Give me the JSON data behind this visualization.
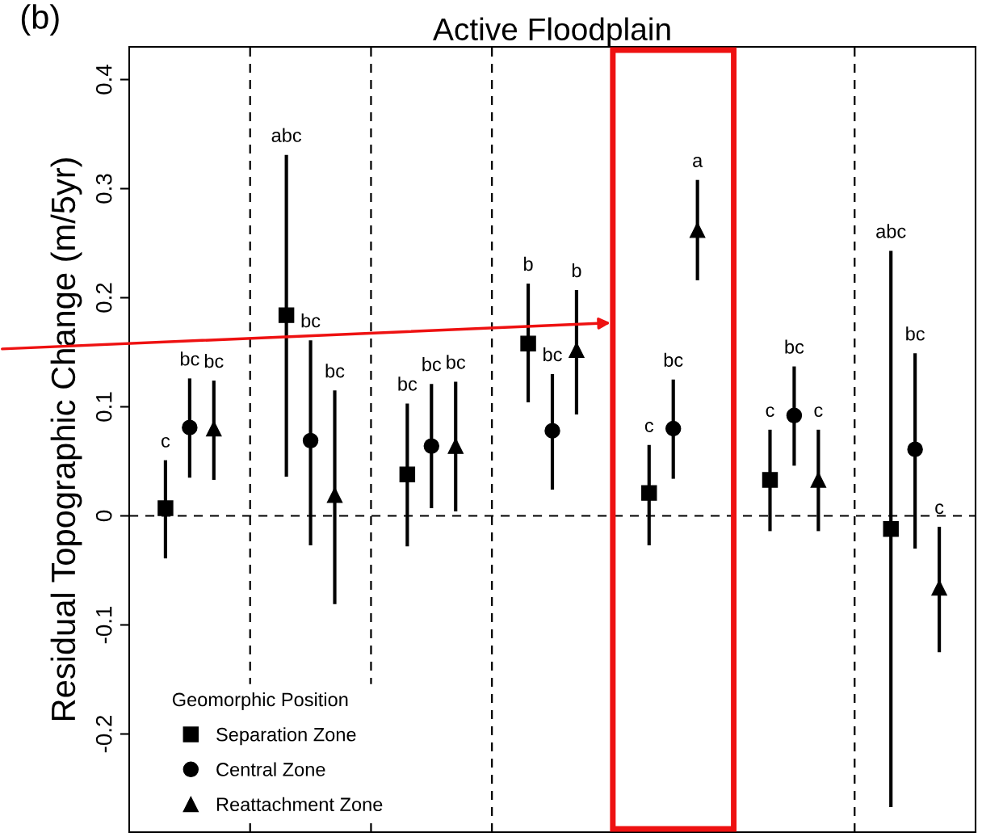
{
  "chart_data": {
    "type": "scatter",
    "title": "Active Floodplain",
    "ylabel": "Residual Topographic Change (m/5yr)",
    "legend_title": "Geomorphic Position",
    "annotations": [
      "(b)",
      {
        "text": "c",
        "y": 0.051
      },
      {
        "text": "bc",
        "y": 0.126
      },
      {
        "text": "bc",
        "y": 0.124
      },
      {
        "text": "abc",
        "y": 0.331
      },
      {
        "text": "bc",
        "y": 0.161
      },
      {
        "text": "bc",
        "y": 0.115
      },
      {
        "text": "bc",
        "y": 0.103
      },
      {
        "text": "bc",
        "y": 0.121
      },
      {
        "text": "bc",
        "y": 0.123
      },
      {
        "text": "b",
        "y": 0.213
      },
      {
        "text": "bc",
        "y": 0.13
      },
      {
        "text": "b",
        "y": 0.207
      },
      {
        "text": "c",
        "y": 0.065
      },
      {
        "text": "bc",
        "y": 0.125
      },
      {
        "text": "a",
        "y": 0.308
      },
      {
        "text": "c",
        "y": 0.079
      },
      {
        "text": "bc",
        "y": 0.137
      },
      {
        "text": "c",
        "y": 0.079
      },
      {
        "text": "abc",
        "y": 0.243
      },
      {
        "text": "bc",
        "y": 0.149
      },
      {
        "text": "c",
        "y": -0.01
      }
    ],
    "categories": [
      null,
      null,
      null,
      null,
      null,
      null,
      null
    ],
    "series": [
      {
        "name": "Separation Zone",
        "color": "#000000",
        "marker": "square",
        "values": [
          0.007,
          0.184,
          0.038,
          0.158,
          0.021,
          0.033,
          -0.012
        ],
        "errors": [
          [
            -0.039,
            0.051
          ],
          [
            0.036,
            0.331
          ],
          [
            -0.028,
            0.103
          ],
          [
            0.104,
            0.213
          ],
          [
            -0.027,
            0.065
          ],
          [
            -0.014,
            0.079
          ],
          [
            -0.267,
            0.243
          ]
        ]
      },
      {
        "name": "Central Zone",
        "color": "#000000",
        "marker": "circle",
        "values": [
          0.081,
          0.069,
          0.064,
          0.078,
          0.08,
          0.092,
          0.061
        ],
        "errors": [
          [
            0.035,
            0.126
          ],
          [
            -0.027,
            0.161
          ],
          [
            0.007,
            0.121
          ],
          [
            0.024,
            0.13
          ],
          [
            0.034,
            0.125
          ],
          [
            0.046,
            0.137
          ],
          [
            -0.03,
            0.149
          ]
        ]
      },
      {
        "name": "Reattachment Zone",
        "color": "#000000",
        "marker": "triangle",
        "values": [
          0.08,
          0.019,
          0.064,
          0.152,
          0.262,
          0.033,
          -0.066
        ],
        "errors": [
          [
            0.033,
            0.124
          ],
          [
            -0.081,
            0.115
          ],
          [
            0.004,
            0.123
          ],
          [
            0.093,
            0.207
          ],
          [
            0.216,
            0.308
          ],
          [
            -0.014,
            0.079
          ],
          [
            -0.125,
            -0.01
          ]
        ]
      }
    ],
    "ylim": [
      -0.29,
      0.43
    ],
    "yticks": [
      -0.2,
      -0.1,
      {
        "value": 0,
        "label": "0"
      },
      0.1,
      0.2,
      0.3,
      0.4
    ],
    "ref_lines": [
      {
        "axis": "y",
        "value": 0,
        "line_style": "dashed",
        "color": "#000000"
      }
    ],
    "grid": false,
    "legend": "bottom left",
    "tick_labels": "y"
  }
}
